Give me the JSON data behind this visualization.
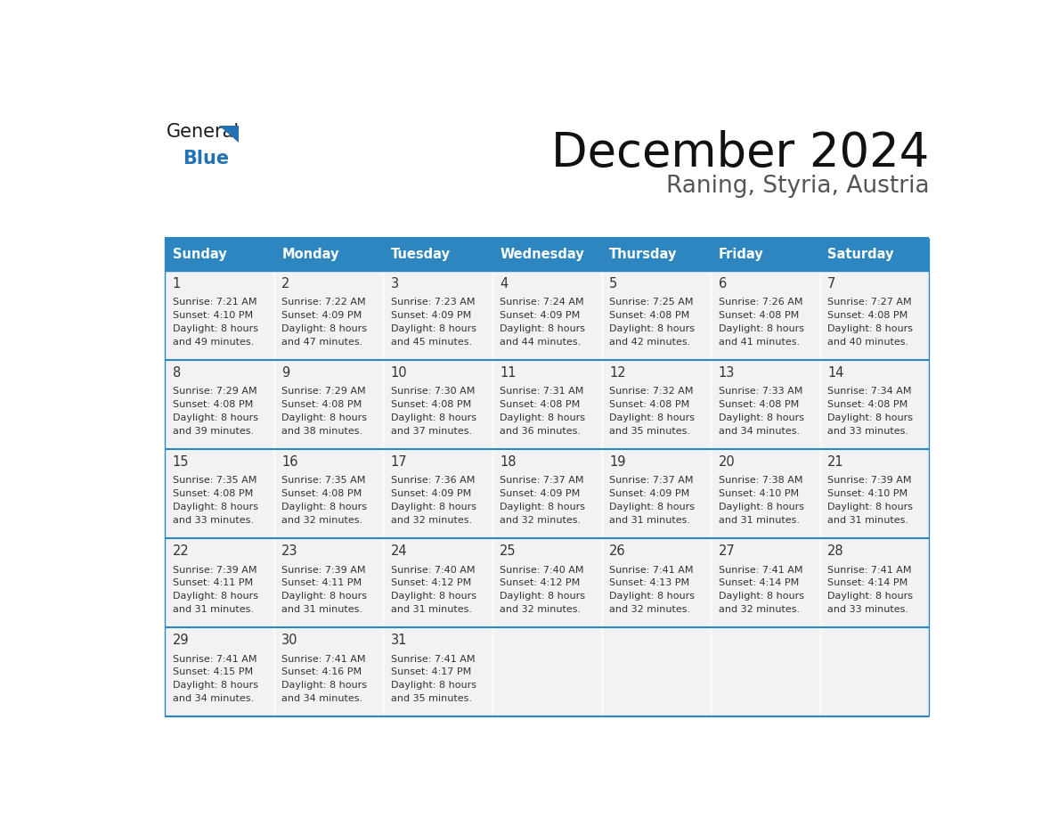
{
  "title": "December 2024",
  "subtitle": "Raning, Styria, Austria",
  "header_bg": "#2E86C1",
  "header_text_color": "#FFFFFF",
  "cell_bg": "#F2F2F2",
  "border_color": "#2E86C1",
  "text_color": "#333333",
  "days_of_week": [
    "Sunday",
    "Monday",
    "Tuesday",
    "Wednesday",
    "Thursday",
    "Friday",
    "Saturday"
  ],
  "calendar_data": [
    [
      {
        "day": 1,
        "sunrise": "7:21 AM",
        "sunset": "4:10 PM",
        "daylight_hours": 8,
        "daylight_minutes": 49
      },
      {
        "day": 2,
        "sunrise": "7:22 AM",
        "sunset": "4:09 PM",
        "daylight_hours": 8,
        "daylight_minutes": 47
      },
      {
        "day": 3,
        "sunrise": "7:23 AM",
        "sunset": "4:09 PM",
        "daylight_hours": 8,
        "daylight_minutes": 45
      },
      {
        "day": 4,
        "sunrise": "7:24 AM",
        "sunset": "4:09 PM",
        "daylight_hours": 8,
        "daylight_minutes": 44
      },
      {
        "day": 5,
        "sunrise": "7:25 AM",
        "sunset": "4:08 PM",
        "daylight_hours": 8,
        "daylight_minutes": 42
      },
      {
        "day": 6,
        "sunrise": "7:26 AM",
        "sunset": "4:08 PM",
        "daylight_hours": 8,
        "daylight_minutes": 41
      },
      {
        "day": 7,
        "sunrise": "7:27 AM",
        "sunset": "4:08 PM",
        "daylight_hours": 8,
        "daylight_minutes": 40
      }
    ],
    [
      {
        "day": 8,
        "sunrise": "7:29 AM",
        "sunset": "4:08 PM",
        "daylight_hours": 8,
        "daylight_minutes": 39
      },
      {
        "day": 9,
        "sunrise": "7:29 AM",
        "sunset": "4:08 PM",
        "daylight_hours": 8,
        "daylight_minutes": 38
      },
      {
        "day": 10,
        "sunrise": "7:30 AM",
        "sunset": "4:08 PM",
        "daylight_hours": 8,
        "daylight_minutes": 37
      },
      {
        "day": 11,
        "sunrise": "7:31 AM",
        "sunset": "4:08 PM",
        "daylight_hours": 8,
        "daylight_minutes": 36
      },
      {
        "day": 12,
        "sunrise": "7:32 AM",
        "sunset": "4:08 PM",
        "daylight_hours": 8,
        "daylight_minutes": 35
      },
      {
        "day": 13,
        "sunrise": "7:33 AM",
        "sunset": "4:08 PM",
        "daylight_hours": 8,
        "daylight_minutes": 34
      },
      {
        "day": 14,
        "sunrise": "7:34 AM",
        "sunset": "4:08 PM",
        "daylight_hours": 8,
        "daylight_minutes": 33
      }
    ],
    [
      {
        "day": 15,
        "sunrise": "7:35 AM",
        "sunset": "4:08 PM",
        "daylight_hours": 8,
        "daylight_minutes": 33
      },
      {
        "day": 16,
        "sunrise": "7:35 AM",
        "sunset": "4:08 PM",
        "daylight_hours": 8,
        "daylight_minutes": 32
      },
      {
        "day": 17,
        "sunrise": "7:36 AM",
        "sunset": "4:09 PM",
        "daylight_hours": 8,
        "daylight_minutes": 32
      },
      {
        "day": 18,
        "sunrise": "7:37 AM",
        "sunset": "4:09 PM",
        "daylight_hours": 8,
        "daylight_minutes": 32
      },
      {
        "day": 19,
        "sunrise": "7:37 AM",
        "sunset": "4:09 PM",
        "daylight_hours": 8,
        "daylight_minutes": 31
      },
      {
        "day": 20,
        "sunrise": "7:38 AM",
        "sunset": "4:10 PM",
        "daylight_hours": 8,
        "daylight_minutes": 31
      },
      {
        "day": 21,
        "sunrise": "7:39 AM",
        "sunset": "4:10 PM",
        "daylight_hours": 8,
        "daylight_minutes": 31
      }
    ],
    [
      {
        "day": 22,
        "sunrise": "7:39 AM",
        "sunset": "4:11 PM",
        "daylight_hours": 8,
        "daylight_minutes": 31
      },
      {
        "day": 23,
        "sunrise": "7:39 AM",
        "sunset": "4:11 PM",
        "daylight_hours": 8,
        "daylight_minutes": 31
      },
      {
        "day": 24,
        "sunrise": "7:40 AM",
        "sunset": "4:12 PM",
        "daylight_hours": 8,
        "daylight_minutes": 31
      },
      {
        "day": 25,
        "sunrise": "7:40 AM",
        "sunset": "4:12 PM",
        "daylight_hours": 8,
        "daylight_minutes": 32
      },
      {
        "day": 26,
        "sunrise": "7:41 AM",
        "sunset": "4:13 PM",
        "daylight_hours": 8,
        "daylight_minutes": 32
      },
      {
        "day": 27,
        "sunrise": "7:41 AM",
        "sunset": "4:14 PM",
        "daylight_hours": 8,
        "daylight_minutes": 32
      },
      {
        "day": 28,
        "sunrise": "7:41 AM",
        "sunset": "4:14 PM",
        "daylight_hours": 8,
        "daylight_minutes": 33
      }
    ],
    [
      {
        "day": 29,
        "sunrise": "7:41 AM",
        "sunset": "4:15 PM",
        "daylight_hours": 8,
        "daylight_minutes": 34
      },
      {
        "day": 30,
        "sunrise": "7:41 AM",
        "sunset": "4:16 PM",
        "daylight_hours": 8,
        "daylight_minutes": 34
      },
      {
        "day": 31,
        "sunrise": "7:41 AM",
        "sunset": "4:17 PM",
        "daylight_hours": 8,
        "daylight_minutes": 35
      },
      null,
      null,
      null,
      null
    ]
  ],
  "logo_color_general": "#1a1a1a",
  "logo_color_blue": "#2472B3"
}
